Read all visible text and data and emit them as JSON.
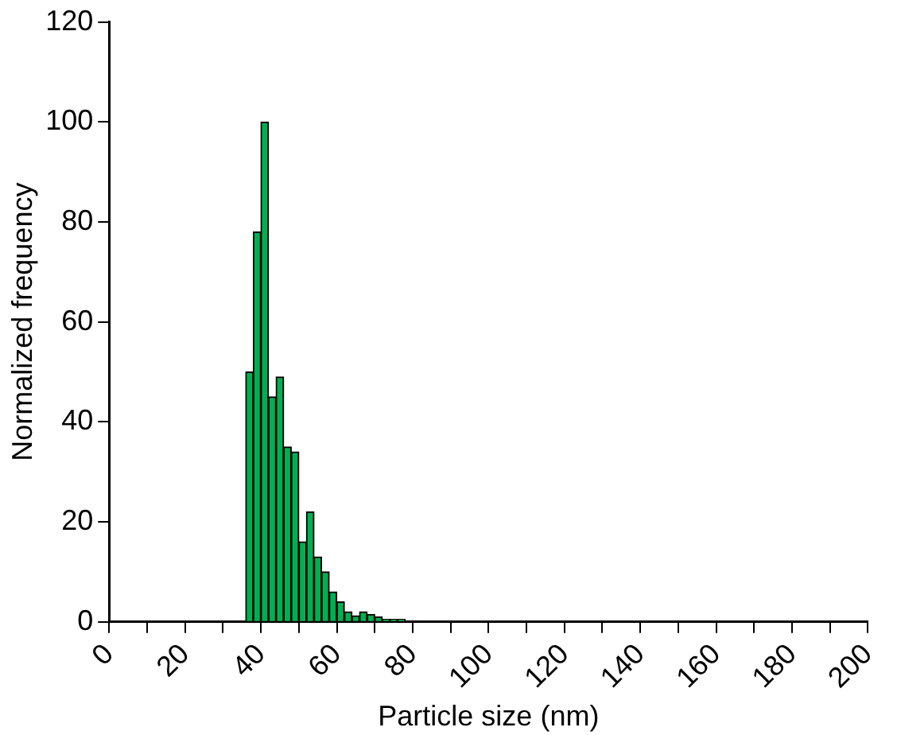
{
  "chart_data": {
    "type": "histogram",
    "xlabel": "Particle size (nm)",
    "ylabel": "Normalized frequency",
    "bins": [
      36,
      38,
      40,
      42,
      44,
      46,
      48,
      50,
      52,
      54,
      56,
      58,
      60,
      62,
      64,
      66,
      68,
      70,
      72,
      74,
      76,
      78
    ],
    "values": [
      50,
      78,
      100,
      45,
      49,
      35,
      34,
      16,
      22,
      13,
      10,
      6,
      4,
      2,
      1.2,
      2,
      1.5,
      1,
      0.5,
      0.5,
      0.5
    ],
    "color": "#00b050",
    "xlim": [
      0,
      200
    ],
    "xticks": [
      0,
      {
        "value": 10,
        "label": null
      },
      20,
      {
        "value": 30,
        "label": null
      },
      40,
      {
        "value": 50,
        "label": null
      },
      60,
      {
        "value": 70,
        "label": null
      },
      80,
      {
        "value": 90,
        "label": null
      },
      100,
      {
        "value": 110,
        "label": null
      },
      120,
      {
        "value": 130,
        "label": null
      },
      140,
      {
        "value": 150,
        "label": null
      },
      160,
      {
        "value": 170,
        "label": null
      },
      180,
      {
        "value": 190,
        "label": null
      },
      200
    ],
    "ylim": [
      0,
      120
    ],
    "yticks": [
      0,
      20,
      40,
      60,
      80,
      100,
      120
    ],
    "grid": false,
    "legend": false
  }
}
